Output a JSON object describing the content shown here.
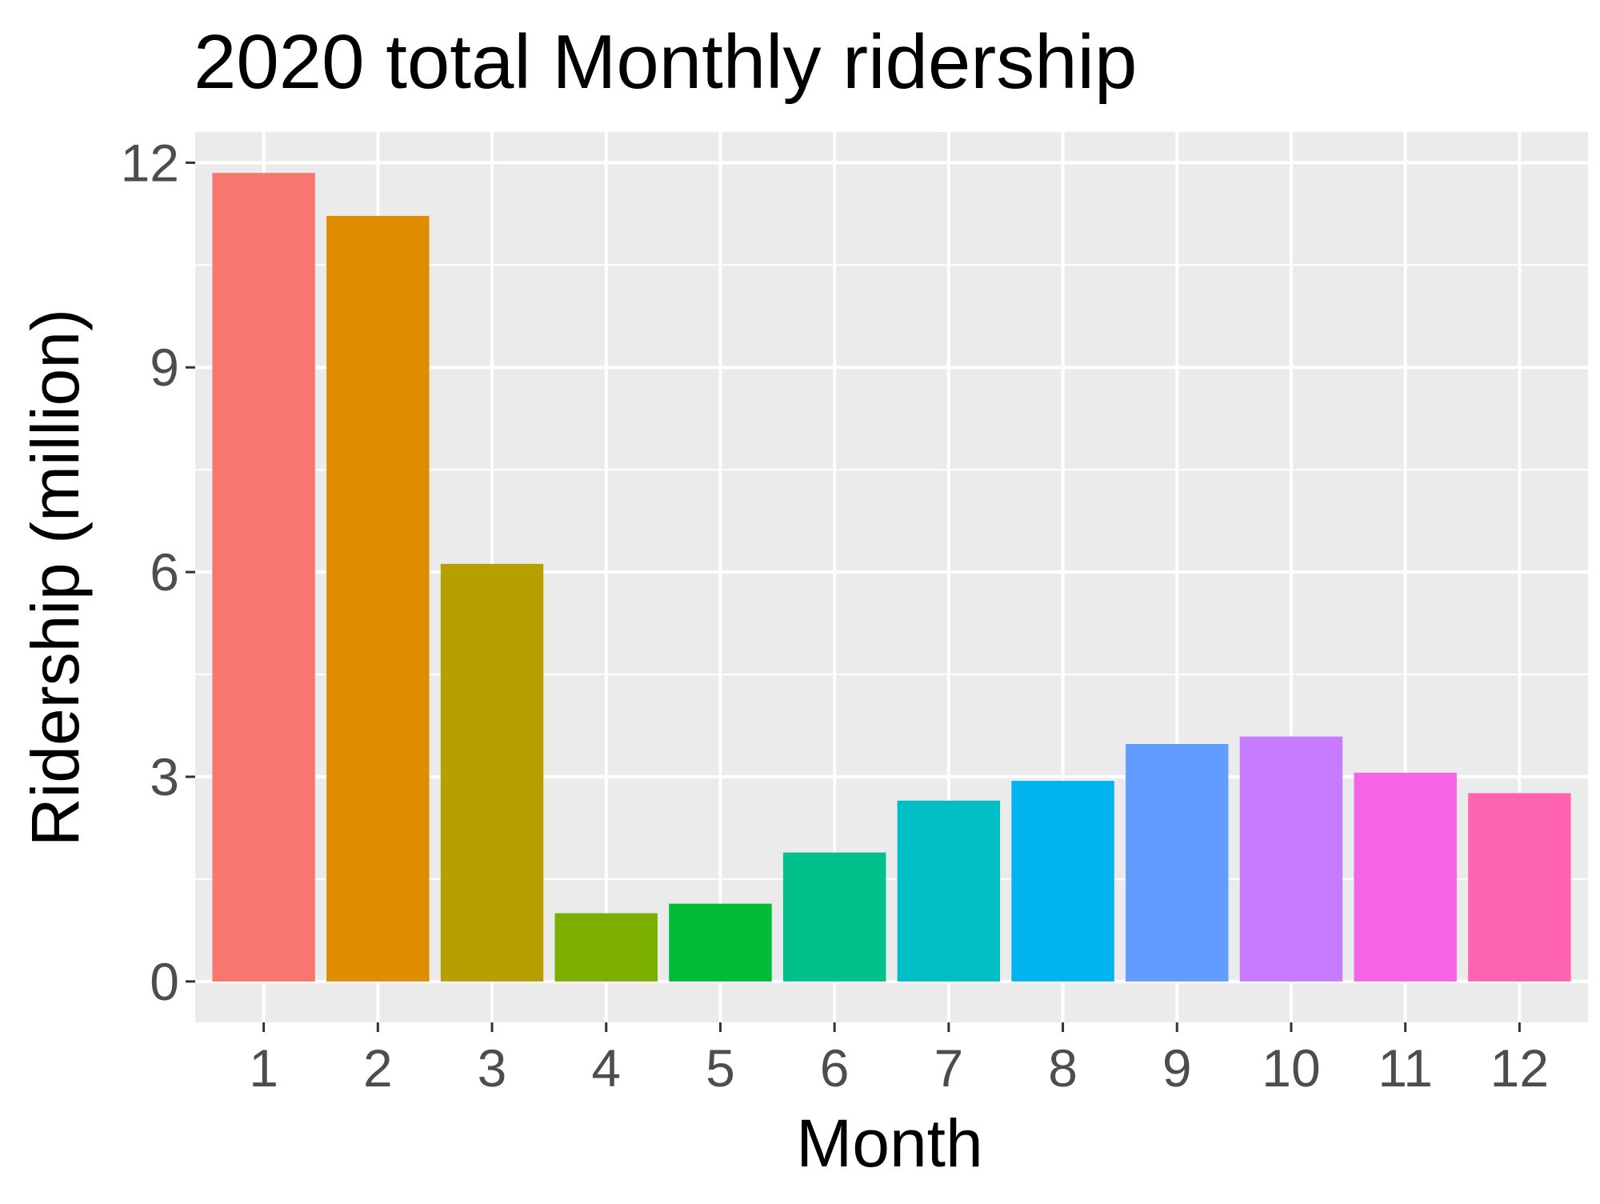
{
  "chart_data": {
    "type": "bar",
    "title": "2020 total Monthly ridership",
    "xlabel": "Month",
    "ylabel": "Ridership (million)",
    "categories": [
      "1",
      "2",
      "3",
      "4",
      "5",
      "6",
      "7",
      "8",
      "9",
      "10",
      "11",
      "12"
    ],
    "values": [
      11.85,
      11.22,
      6.12,
      1.0,
      1.14,
      1.89,
      2.65,
      2.94,
      3.48,
      3.59,
      3.06,
      2.76
    ],
    "ylim": [
      -0.6,
      12.45
    ],
    "yticks": [
      0,
      3,
      6,
      9,
      12
    ],
    "ytick_labels": [
      "0",
      "3",
      "6",
      "9",
      "12"
    ],
    "grid": true,
    "legend": "none",
    "colors": [
      "#F8766D",
      "#DE8C00",
      "#B79F00",
      "#7CAE00",
      "#00BA38",
      "#00C08B",
      "#00BFC4",
      "#00B4F0",
      "#619CFF",
      "#C77CFF",
      "#F564E3",
      "#FF64B0"
    ],
    "panel_background": "#EBEBEB",
    "grid_color": "#FFFFFF"
  }
}
